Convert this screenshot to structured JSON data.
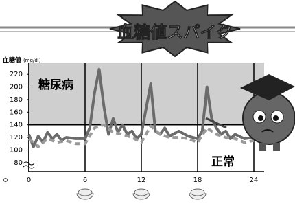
{
  "chart_data": {
    "type": "line",
    "title": "血糖値スパイク",
    "ylabel": "血糖値",
    "ylabel_unit": "(mg/dl)",
    "annotations": [
      "糖尿病",
      "正常"
    ],
    "xlim": [
      0,
      24
    ],
    "xticks": [
      0,
      6,
      12,
      18,
      24
    ],
    "ylim": [
      70,
      230
    ],
    "yticks": [
      80,
      100,
      120,
      140,
      160,
      180,
      200,
      220
    ],
    "threshold": 140,
    "shade_color": "#cfcfcf",
    "series": [
      {
        "color": "#6b6b6b",
        "dashed": false,
        "x": [
          0,
          0.5,
          1,
          1.5,
          2,
          2.5,
          3,
          3.5,
          4,
          5,
          6,
          6.5,
          7,
          7.5,
          8,
          8.5,
          9,
          9.5,
          10,
          10.5,
          11,
          11.5,
          12,
          12.5,
          13,
          13.5,
          14,
          14.5,
          15,
          16,
          17,
          18,
          18.5,
          19,
          19.5,
          20,
          20.5,
          21,
          21.5,
          22,
          23,
          24
        ],
        "values": [
          125,
          105,
          122,
          112,
          128,
          118,
          125,
          115,
          120,
          118,
          118,
          135,
          190,
          228,
          170,
          125,
          150,
          128,
          140,
          125,
          130,
          118,
          125,
          165,
          205,
          130,
          125,
          135,
          122,
          130,
          122,
          118,
          130,
          200,
          150,
          135,
          125,
          130,
          118,
          125,
          118,
          120
        ]
      },
      {
        "color": "#9a9a9a",
        "dashed": true,
        "x": [
          0,
          1,
          2,
          3,
          4,
          5,
          6,
          7,
          8,
          9,
          10,
          11,
          12,
          13,
          14,
          15,
          16,
          17,
          18,
          19,
          20,
          21,
          22,
          23,
          24
        ],
        "values": [
          118,
          105,
          118,
          112,
          115,
          110,
          110,
          135,
          140,
          128,
          125,
          120,
          112,
          138,
          125,
          120,
          120,
          118,
          112,
          135,
          125,
          120,
          118,
          112,
          115
        ]
      }
    ]
  }
}
